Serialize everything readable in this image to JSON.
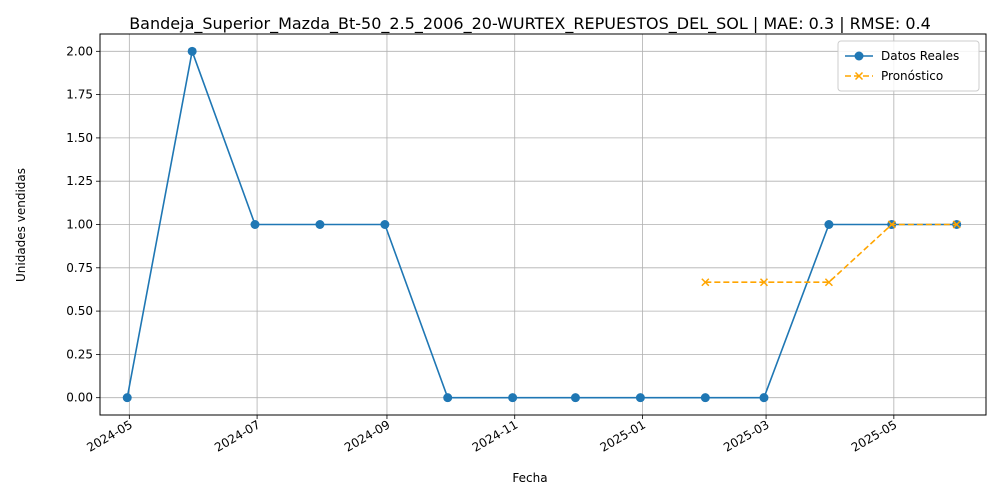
{
  "chart_data": {
    "type": "line",
    "title": "Bandeja_Superior_Mazda_Bt-50_2.5_2006_20-WURTEX_REPUESTOS_DEL_SOL | MAE: 0.3 | RMSE: 0.4",
    "xlabel": "Fecha",
    "ylabel": "Unidades vendidas",
    "xlim": [
      "2024-04-17",
      "2025-06-14"
    ],
    "ylim": [
      -0.1,
      2.1
    ],
    "grid": true,
    "legend_position": "top-right",
    "x_ticks": [
      "2024-05",
      "2024-07",
      "2024-09",
      "2024-11",
      "2025-01",
      "2025-03",
      "2025-05"
    ],
    "x_tick_dates": [
      "2024-05-01",
      "2024-07-01",
      "2024-09-01",
      "2024-11-01",
      "2025-01-01",
      "2025-03-01",
      "2025-05-01"
    ],
    "y_ticks": [
      "0.00",
      "0.25",
      "0.50",
      "0.75",
      "1.00",
      "1.25",
      "1.50",
      "1.75",
      "2.00"
    ],
    "y_tick_values": [
      0,
      0.25,
      0.5,
      0.75,
      1.0,
      1.25,
      1.5,
      1.75,
      2.0
    ],
    "series": [
      {
        "name": "Datos Reales",
        "color": "#1f77b4",
        "style": "solid",
        "marker": "circle",
        "x": [
          "2024-04-30",
          "2024-05-31",
          "2024-06-30",
          "2024-07-31",
          "2024-08-31",
          "2024-09-30",
          "2024-10-31",
          "2024-11-30",
          "2024-12-31",
          "2025-01-31",
          "2025-02-28",
          "2025-03-31",
          "2025-04-30",
          "2025-05-31"
        ],
        "values": [
          0,
          2,
          1,
          1,
          1,
          0,
          0,
          0,
          0,
          0,
          0,
          1,
          1,
          1
        ]
      },
      {
        "name": "Pronóstico",
        "color": "#ffa500",
        "style": "dashed",
        "marker": "x",
        "x": [
          "2025-01-31",
          "2025-02-28",
          "2025-03-31",
          "2025-04-30",
          "2025-05-31"
        ],
        "values": [
          0.6667,
          0.6667,
          0.6667,
          1.0,
          1.0
        ]
      }
    ]
  }
}
